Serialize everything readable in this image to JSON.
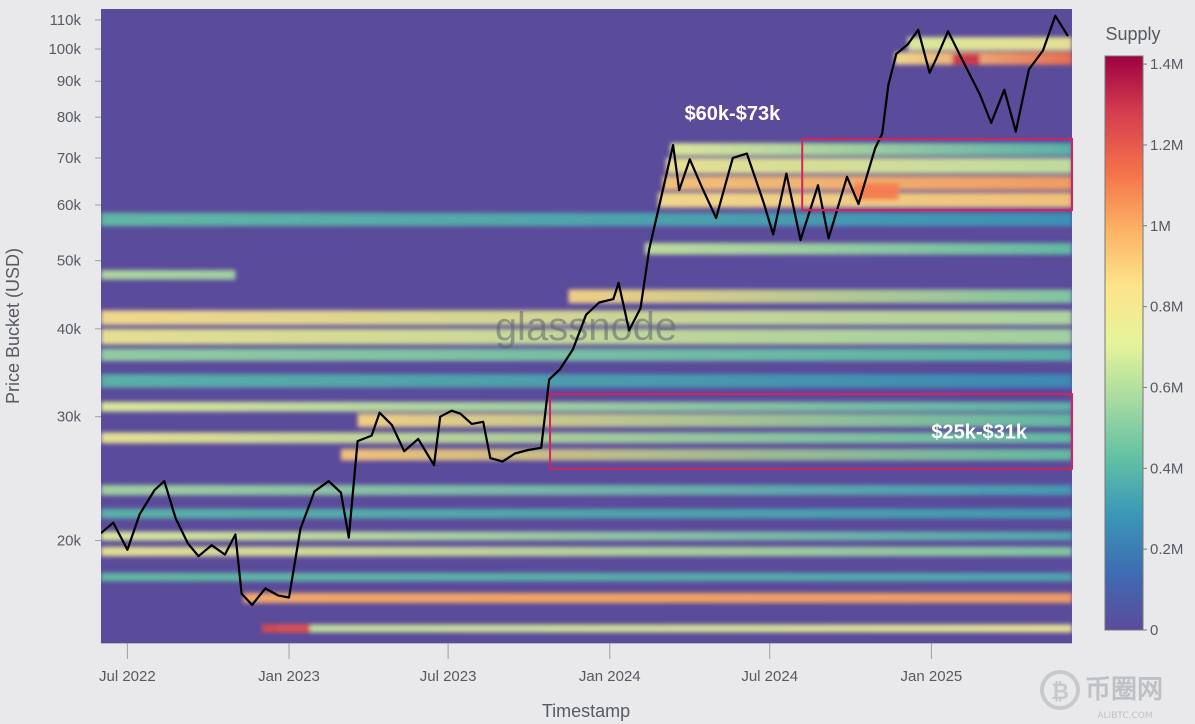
{
  "chart_data": {
    "type": "heatmap",
    "title": "",
    "xlabel": "Timestamp",
    "ylabel": "Price Bucket (USD)",
    "yscale": "log",
    "x_range": [
      "2022-06-01",
      "2025-06-10"
    ],
    "ylim": [
      14300,
      114000
    ],
    "x_ticks": [
      {
        "label": "Jul 2022",
        "date": "2022-07-01"
      },
      {
        "label": "Jan 2023",
        "date": "2023-01-01"
      },
      {
        "label": "Jul 2023",
        "date": "2023-07-01"
      },
      {
        "label": "Jan 2024",
        "date": "2024-01-01"
      },
      {
        "label": "Jul 2024",
        "date": "2024-07-01"
      },
      {
        "label": "Jan 2025",
        "date": "2025-01-01"
      }
    ],
    "y_ticks": [
      {
        "label": "110k",
        "value": 110000
      },
      {
        "label": "100k",
        "value": 100000
      },
      {
        "label": "90k",
        "value": 90000
      },
      {
        "label": "80k",
        "value": 80000
      },
      {
        "label": "70k",
        "value": 70000
      },
      {
        "label": "60k",
        "value": 60000
      },
      {
        "label": "50k",
        "value": 50000
      },
      {
        "label": "40k",
        "value": 40000
      },
      {
        "label": "30k",
        "value": 30000
      },
      {
        "label": "20k",
        "value": 20000
      }
    ],
    "colorbar": {
      "title": "Supply",
      "min": 0,
      "max": 1420000,
      "ticks": [
        {
          "label": "1.4M",
          "value": 1400000
        },
        {
          "label": "1.2M",
          "value": 1200000
        },
        {
          "label": "1M",
          "value": 1000000
        },
        {
          "label": "0.8M",
          "value": 800000
        },
        {
          "label": "0.6M",
          "value": 600000
        },
        {
          "label": "0.4M",
          "value": 400000
        },
        {
          "label": "0.2M",
          "value": 200000
        },
        {
          "label": "0",
          "value": 0
        }
      ],
      "colors": [
        "#5b4b9b",
        "#3e6cb3",
        "#3a97b7",
        "#62c1a4",
        "#a6dba0",
        "#e6f49a",
        "#fde38a",
        "#fdb064",
        "#f4704a",
        "#d53e4f",
        "#9e0142"
      ]
    },
    "series": [
      {
        "type": "line",
        "color": "#000000",
        "points": [
          [
            "2022-06-01",
            20500
          ],
          [
            "2022-06-15",
            21200
          ],
          [
            "2022-07-01",
            19400
          ],
          [
            "2022-07-15",
            21800
          ],
          [
            "2022-08-01",
            23600
          ],
          [
            "2022-08-12",
            24300
          ],
          [
            "2022-08-25",
            21500
          ],
          [
            "2022-09-08",
            19800
          ],
          [
            "2022-09-20",
            19000
          ],
          [
            "2022-10-05",
            19700
          ],
          [
            "2022-10-20",
            19100
          ],
          [
            "2022-11-01",
            20400
          ],
          [
            "2022-11-08",
            16800
          ],
          [
            "2022-11-20",
            16200
          ],
          [
            "2022-12-05",
            17100
          ],
          [
            "2022-12-20",
            16700
          ],
          [
            "2023-01-01",
            16600
          ],
          [
            "2023-01-14",
            20800
          ],
          [
            "2023-01-30",
            23500
          ],
          [
            "2023-02-15",
            24300
          ],
          [
            "2023-03-01",
            23400
          ],
          [
            "2023-03-10",
            20200
          ],
          [
            "2023-03-20",
            27700
          ],
          [
            "2023-04-05",
            28200
          ],
          [
            "2023-04-14",
            30400
          ],
          [
            "2023-04-28",
            29200
          ],
          [
            "2023-05-12",
            26800
          ],
          [
            "2023-05-28",
            27900
          ],
          [
            "2023-06-15",
            25600
          ],
          [
            "2023-06-22",
            30000
          ],
          [
            "2023-07-05",
            30600
          ],
          [
            "2023-07-15",
            30300
          ],
          [
            "2023-07-28",
            29300
          ],
          [
            "2023-08-10",
            29500
          ],
          [
            "2023-08-18",
            26200
          ],
          [
            "2023-09-01",
            25900
          ],
          [
            "2023-09-15",
            26600
          ],
          [
            "2023-09-30",
            26900
          ],
          [
            "2023-10-15",
            27100
          ],
          [
            "2023-10-24",
            33900
          ],
          [
            "2023-11-05",
            35000
          ],
          [
            "2023-11-20",
            37400
          ],
          [
            "2023-12-05",
            41900
          ],
          [
            "2023-12-20",
            43600
          ],
          [
            "2024-01-05",
            44100
          ],
          [
            "2024-01-11",
            46500
          ],
          [
            "2024-01-23",
            39800
          ],
          [
            "2024-02-05",
            42800
          ],
          [
            "2024-02-15",
            52000
          ],
          [
            "2024-02-28",
            61200
          ],
          [
            "2024-03-13",
            73000
          ],
          [
            "2024-03-20",
            63000
          ],
          [
            "2024-04-01",
            69700
          ],
          [
            "2024-04-15",
            63500
          ],
          [
            "2024-05-01",
            57500
          ],
          [
            "2024-05-20",
            70000
          ],
          [
            "2024-06-05",
            71000
          ],
          [
            "2024-06-24",
            60500
          ],
          [
            "2024-07-05",
            54500
          ],
          [
            "2024-07-20",
            66500
          ],
          [
            "2024-08-05",
            53500
          ],
          [
            "2024-08-25",
            64000
          ],
          [
            "2024-09-06",
            53800
          ],
          [
            "2024-09-27",
            65800
          ],
          [
            "2024-10-10",
            60200
          ],
          [
            "2024-10-29",
            72300
          ],
          [
            "2024-11-06",
            75800
          ],
          [
            "2024-11-13",
            88800
          ],
          [
            "2024-11-22",
            98400
          ],
          [
            "2024-12-05",
            101500
          ],
          [
            "2024-12-17",
            106500
          ],
          [
            "2024-12-30",
            92500
          ],
          [
            "2025-01-07",
            97200
          ],
          [
            "2025-01-20",
            106000
          ],
          [
            "2025-02-03",
            97700
          ],
          [
            "2025-02-25",
            86300
          ],
          [
            "2025-03-10",
            78500
          ],
          [
            "2025-03-25",
            87500
          ],
          [
            "2025-04-07",
            76300
          ],
          [
            "2025-04-22",
            93500
          ],
          [
            "2025-05-08",
            99500
          ],
          [
            "2025-05-22",
            111500
          ],
          [
            "2025-06-05",
            104500
          ]
        ]
      }
    ],
    "annotations": [
      {
        "label": "$60k-$73k",
        "x": [
          "2024-08-07",
          "2025-06-10"
        ],
        "y": [
          59000,
          74500
        ],
        "color": "#d0245e",
        "label_position": "above-left"
      },
      {
        "label": "$25k-$31k",
        "x": [
          "2023-10-25",
          "2025-06-10"
        ],
        "y": [
          25300,
          32300
        ],
        "color": "#d0245e",
        "label_position": "inside-right"
      }
    ],
    "bands": [
      {
        "y": [
          14800,
          15200
        ],
        "x": [
          "2022-12-20",
          "2025-06-10"
        ],
        "supply": [
          0.45,
          0.55
        ]
      },
      {
        "y": [
          16300,
          16850
        ],
        "x": [
          "2022-11-10",
          "2025-06-10"
        ],
        "supply": [
          0.7,
          0.72
        ]
      },
      {
        "y": [
          17500,
          18000
        ],
        "x": [
          "2022-06-01",
          "2025-06-10"
        ],
        "supply": [
          0.3,
          0.25
        ]
      },
      {
        "y": [
          19000,
          19600
        ],
        "x": [
          "2022-06-01",
          "2025-06-10"
        ],
        "supply": [
          0.55,
          0.35
        ]
      },
      {
        "y": [
          20000,
          20600
        ],
        "x": [
          "2022-06-01",
          "2025-06-10"
        ],
        "supply": [
          0.5,
          0.25
        ]
      },
      {
        "y": [
          21500,
          22200
        ],
        "x": [
          "2022-06-01",
          "2025-06-10"
        ],
        "supply": [
          0.28,
          0.22
        ]
      },
      {
        "y": [
          23200,
          24000
        ],
        "x": [
          "2022-06-01",
          "2025-06-10"
        ],
        "supply": [
          0.4,
          0.22
        ]
      },
      {
        "y": [
          26000,
          27000
        ],
        "x": [
          "2023-03-01",
          "2025-06-10"
        ],
        "supply": [
          0.65,
          0.3
        ]
      },
      {
        "y": [
          27500,
          28500
        ],
        "x": [
          "2022-06-01",
          "2025-06-10"
        ],
        "supply": [
          0.55,
          0.3
        ]
      },
      {
        "y": [
          29000,
          30300
        ],
        "x": [
          "2023-03-20",
          "2025-06-10"
        ],
        "supply": [
          0.62,
          0.3
        ]
      },
      {
        "y": [
          30500,
          31500
        ],
        "x": [
          "2022-06-01",
          "2025-06-10"
        ],
        "supply": [
          0.5,
          0.28
        ]
      },
      {
        "y": [
          33000,
          34500
        ],
        "x": [
          "2022-06-01",
          "2025-06-10"
        ],
        "supply": [
          0.28,
          0.18
        ]
      },
      {
        "y": [
          36000,
          37500
        ],
        "x": [
          "2022-06-01",
          "2025-06-10"
        ],
        "supply": [
          0.38,
          0.28
        ]
      },
      {
        "y": [
          38000,
          40000
        ],
        "x": [
          "2022-06-01",
          "2025-06-10"
        ],
        "supply": [
          0.55,
          0.4
        ]
      },
      {
        "y": [
          40500,
          42500
        ],
        "x": [
          "2022-06-01",
          "2025-06-10"
        ],
        "supply": [
          0.6,
          0.42
        ]
      },
      {
        "y": [
          43500,
          45500
        ],
        "x": [
          "2023-11-15",
          "2025-06-10"
        ],
        "supply": [
          0.62,
          0.35
        ]
      },
      {
        "y": [
          47000,
          48500
        ],
        "x": [
          "2022-06-01",
          "2022-11-01"
        ],
        "supply": [
          0.42,
          0.4
        ]
      },
      {
        "y": [
          51000,
          53000
        ],
        "x": [
          "2024-02-10",
          "2025-06-10"
        ],
        "supply": [
          0.45,
          0.3
        ]
      },
      {
        "y": [
          56000,
          58500
        ],
        "x": [
          "2022-06-01",
          "2025-06-10"
        ],
        "supply": [
          0.3,
          0.2
        ]
      },
      {
        "y": [
          59500,
          62500
        ],
        "x": [
          "2024-02-25",
          "2025-06-10"
        ],
        "supply": [
          0.6,
          0.65
        ]
      },
      {
        "y": [
          63000,
          66000
        ],
        "x": [
          "2024-03-01",
          "2025-06-10"
        ],
        "supply": [
          0.65,
          0.72
        ]
      },
      {
        "y": [
          66500,
          70000
        ],
        "x": [
          "2024-03-05",
          "2025-06-10"
        ],
        "supply": [
          0.55,
          0.45
        ]
      },
      {
        "y": [
          70500,
          73500
        ],
        "x": [
          "2024-03-10",
          "2025-06-10"
        ],
        "supply": [
          0.5,
          0.28
        ]
      },
      {
        "y": [
          95000,
          99000
        ],
        "x": [
          "2024-11-20",
          "2025-06-10"
        ],
        "supply": [
          0.6,
          0.8
        ]
      },
      {
        "y": [
          99500,
          104000
        ],
        "x": [
          "2024-12-05",
          "2025-06-10"
        ],
        "supply": [
          0.5,
          0.55
        ]
      }
    ],
    "hotspots": [
      {
        "x": [
          "2022-12-01",
          "2023-01-25"
        ],
        "y": [
          14800,
          15200
        ],
        "supply": 0.88
      },
      {
        "x": [
          "2025-01-25",
          "2025-02-25"
        ],
        "y": [
          95000,
          98500
        ],
        "supply": 0.92
      },
      {
        "x": [
          "2024-10-05",
          "2024-11-25"
        ],
        "y": [
          61000,
          64500
        ],
        "supply": 0.78
      }
    ],
    "watermark": "glassnode"
  },
  "branding": {
    "site_logo_text": "币圈网",
    "site_logo_sub": "ALIBTC.COM"
  }
}
